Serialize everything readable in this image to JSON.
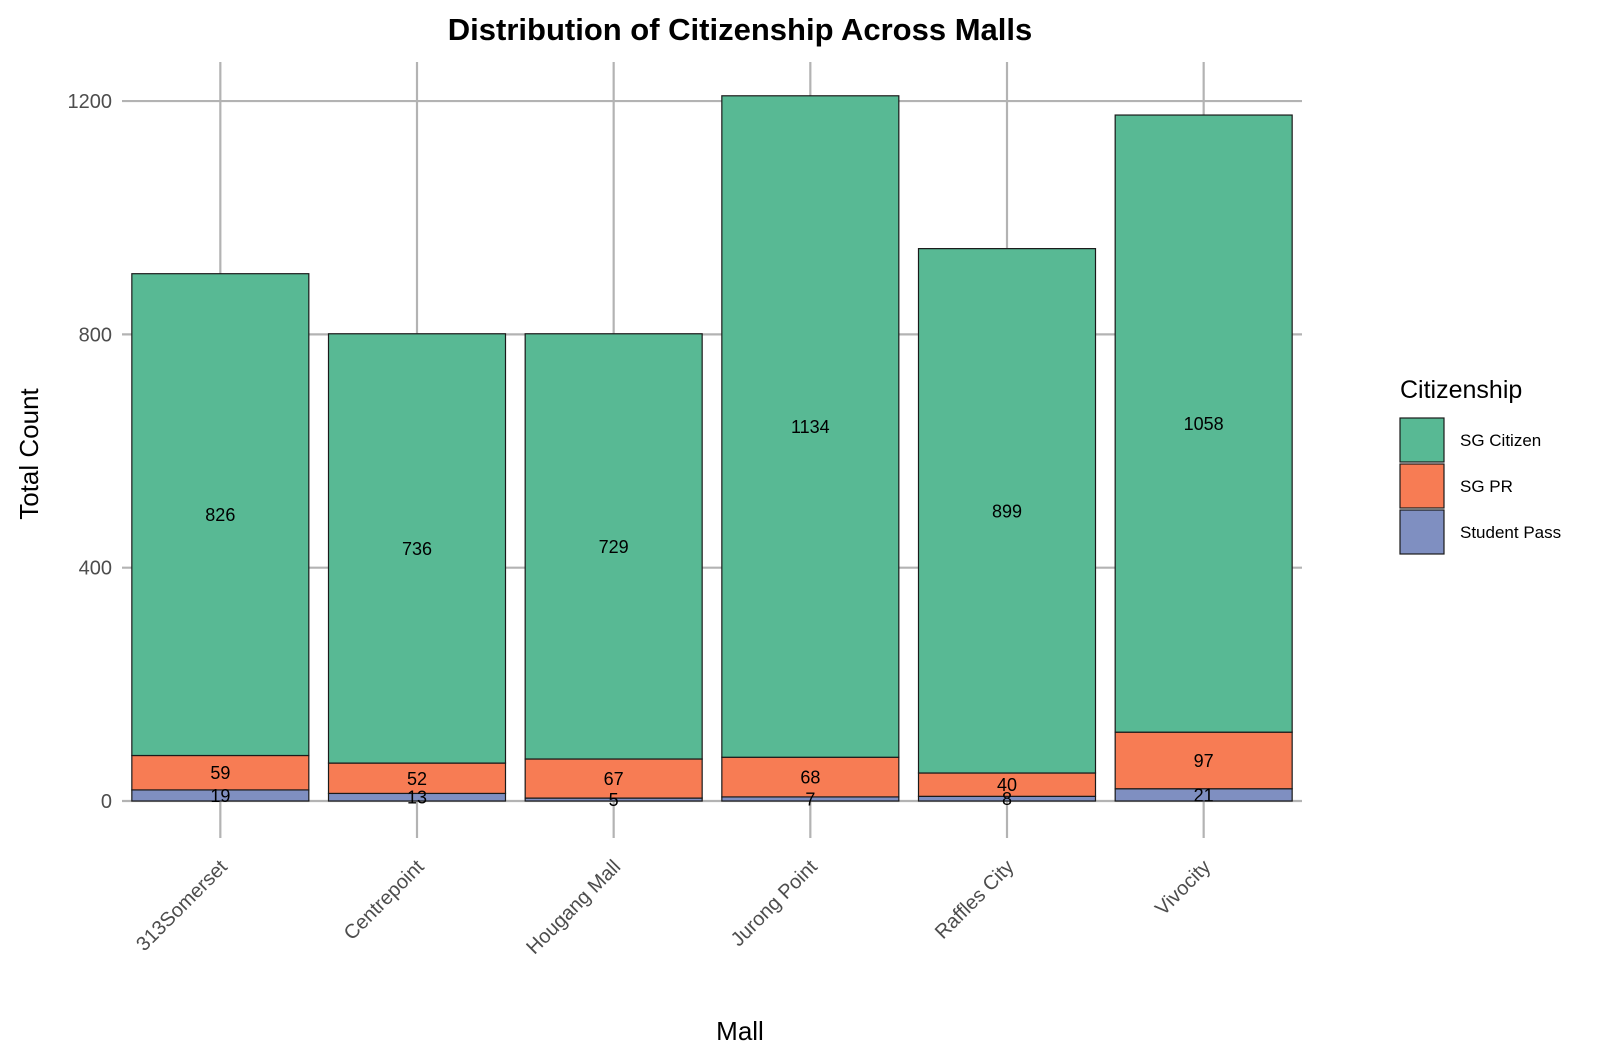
{
  "chart_data": {
    "type": "bar",
    "stacked": true,
    "title": "Distribution of Citizenship Across Malls",
    "xlabel": "Mall",
    "ylabel": "Total Count",
    "categories": [
      "313Somerset",
      "Centrepoint",
      "Hougang Mall",
      "Jurong Point",
      "Raffles City",
      "Vivocity"
    ],
    "series": [
      {
        "name": "Student Pass",
        "color": "#7f8fc1",
        "values": [
          19,
          13,
          5,
          7,
          8,
          21
        ]
      },
      {
        "name": "SG PR",
        "color": "#f77c54",
        "values": [
          59,
          52,
          67,
          68,
          40,
          97
        ]
      },
      {
        "name": "SG Citizen",
        "color": "#58b994",
        "values": [
          826,
          736,
          729,
          1134,
          899,
          1058
        ]
      }
    ],
    "yticks": [
      0,
      400,
      800,
      1200
    ],
    "ytick_labels": [
      "0",
      "400",
      "800",
      "1200"
    ],
    "ylim": [
      -115,
      1275
    ],
    "grid": true,
    "legend": {
      "title": "Citizenship",
      "position": "right",
      "order": [
        "SG Citizen",
        "SG PR",
        "Student Pass"
      ]
    }
  }
}
